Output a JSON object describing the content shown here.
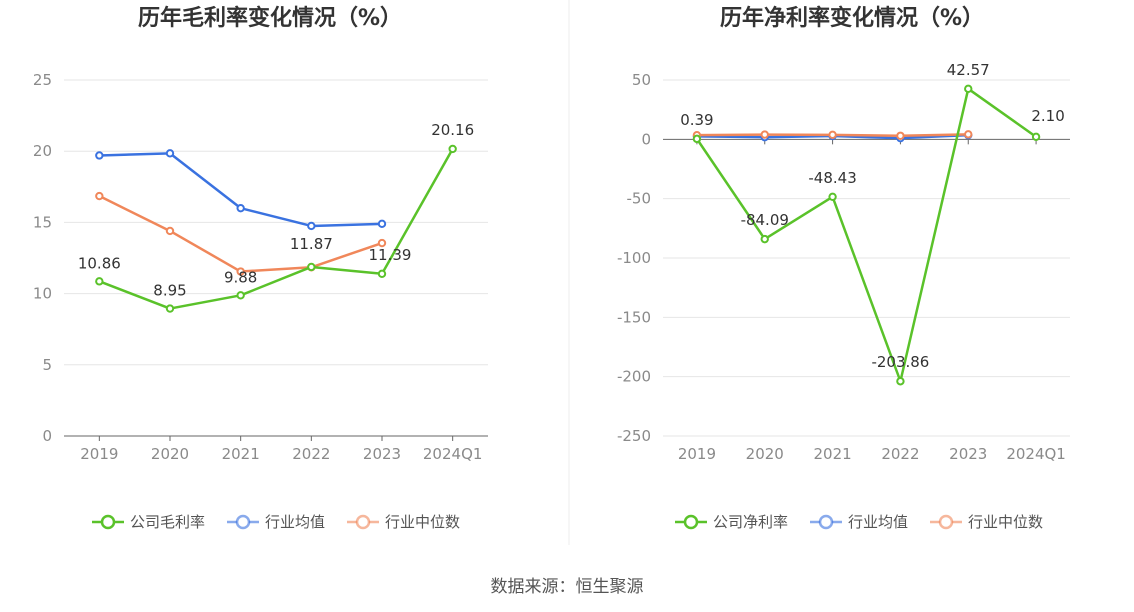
{
  "source": "数据来源：恒生聚源",
  "chart_data": [
    {
      "type": "line",
      "title": "历年毛利率变化情况（%）",
      "categories": [
        "2019",
        "2020",
        "2021",
        "2022",
        "2023",
        "2024Q1"
      ],
      "y_ticks": [
        "0",
        "5",
        "10",
        "15",
        "20",
        "25"
      ],
      "ylim": [
        0,
        25
      ],
      "grid": true,
      "legend_position": "bottom-center",
      "series": [
        {
          "name": "公司毛利率",
          "color": "#5ac22a",
          "values": [
            10.86,
            8.95,
            9.88,
            11.87,
            11.39,
            20.16
          ],
          "labels": [
            "10.86",
            "8.95",
            "9.88",
            "11.87",
            "11.39",
            "20.16"
          ]
        },
        {
          "name": "行业均值",
          "color": "#3a72e0",
          "values": [
            19.7,
            19.85,
            16.0,
            14.75,
            14.9,
            null
          ]
        },
        {
          "name": "行业中位数",
          "color": "#f0875a",
          "values": [
            16.85,
            14.4,
            11.55,
            11.85,
            13.55,
            null
          ]
        }
      ]
    },
    {
      "type": "line",
      "title": "历年净利率变化情况（%）",
      "categories": [
        "2019",
        "2020",
        "2021",
        "2022",
        "2023",
        "2024Q1"
      ],
      "y_ticks": [
        "-250",
        "-200",
        "-150",
        "-100",
        "-50",
        "0",
        "50"
      ],
      "ylim": [
        -250,
        50
      ],
      "grid": true,
      "legend_position": "bottom-center",
      "series": [
        {
          "name": "公司净利率",
          "color": "#5ac22a",
          "values": [
            0.39,
            -84.09,
            -48.43,
            -203.86,
            42.57,
            2.1
          ],
          "labels": [
            "0.39",
            "-84.09",
            "-48.43",
            "-203.86",
            "42.57",
            "2.10"
          ]
        },
        {
          "name": "行业均值",
          "color": "#3a72e0",
          "values": [
            2.5,
            1.8,
            2.8,
            1.0,
            3.5,
            null
          ]
        },
        {
          "name": "行业中位数",
          "color": "#f0875a",
          "values": [
            3.5,
            4.0,
            3.8,
            3.0,
            4.2,
            null
          ]
        }
      ]
    }
  ]
}
